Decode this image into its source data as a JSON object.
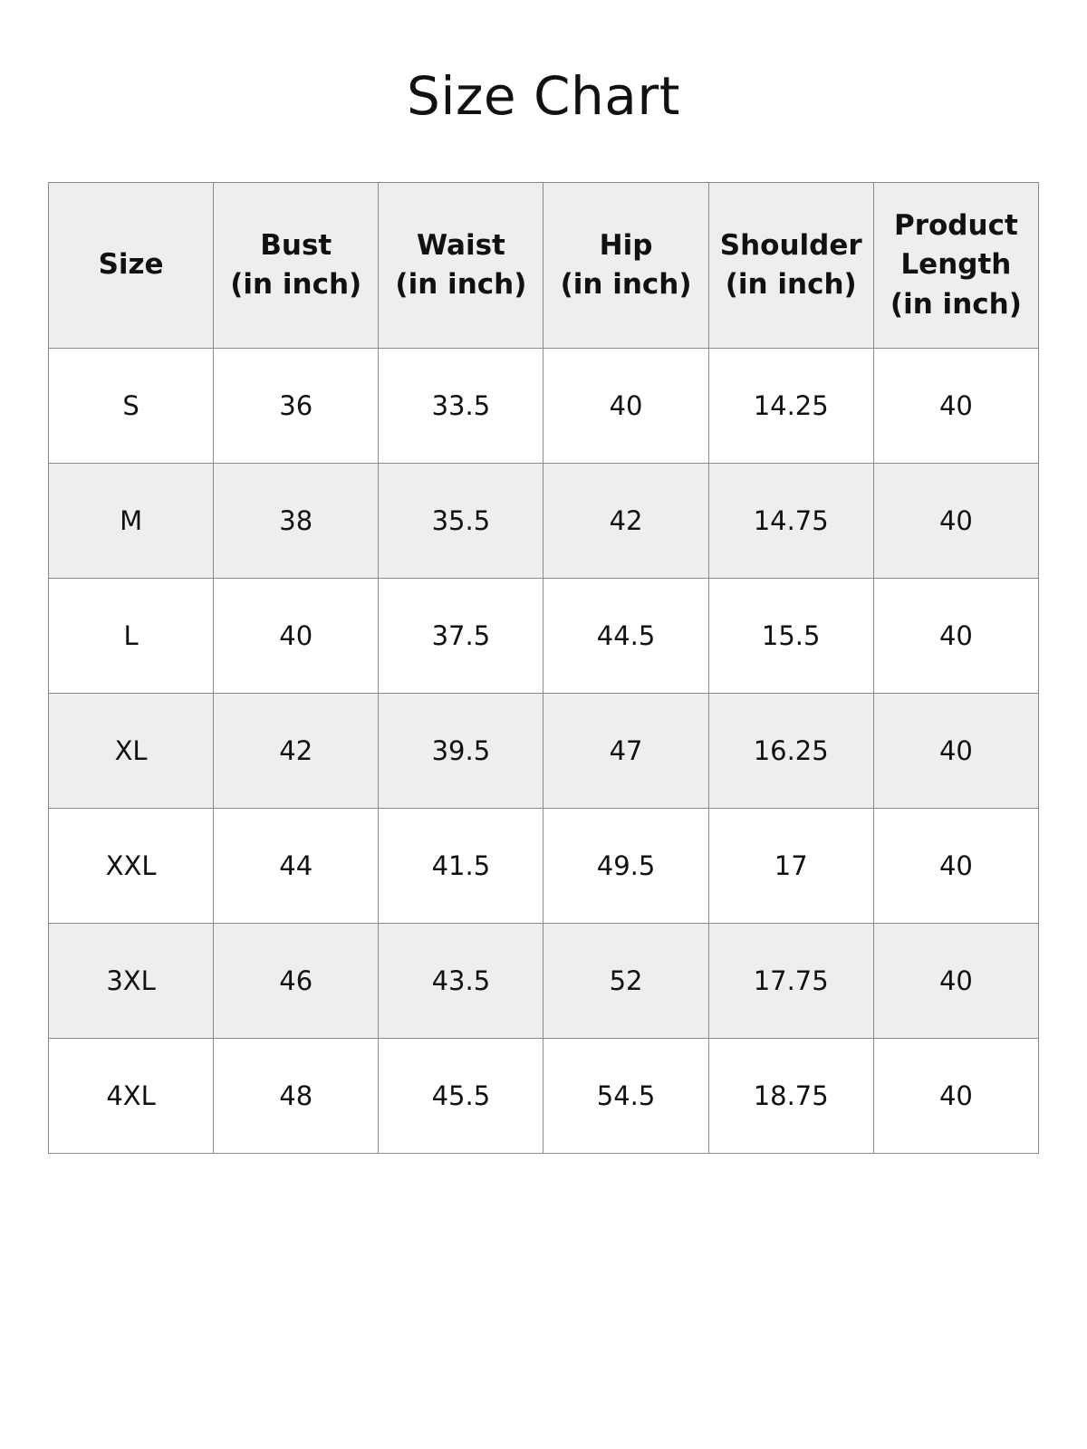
{
  "title": "Size Chart",
  "table": {
    "headers": [
      [
        "Size"
      ],
      [
        "Bust",
        "(in inch)"
      ],
      [
        "Waist",
        "(in inch)"
      ],
      [
        "Hip",
        "(in inch)"
      ],
      [
        "Shoulder",
        "(in inch)"
      ],
      [
        "Product",
        "Length",
        "(in inch)"
      ]
    ],
    "rows": [
      [
        "S",
        "36",
        "33.5",
        "40",
        "14.25",
        "40"
      ],
      [
        "M",
        "38",
        "35.5",
        "42",
        "14.75",
        "40"
      ],
      [
        "L",
        "40",
        "37.5",
        "44.5",
        "15.5",
        "40"
      ],
      [
        "XL",
        "42",
        "39.5",
        "47",
        "16.25",
        "40"
      ],
      [
        "XXL",
        "44",
        "41.5",
        "49.5",
        "17",
        "40"
      ],
      [
        "3XL",
        "46",
        "43.5",
        "52",
        "17.75",
        "40"
      ],
      [
        "4XL",
        "48",
        "45.5",
        "54.5",
        "18.75",
        "40"
      ]
    ]
  },
  "colors": {
    "header_bg": "#eeeeee",
    "alt_row_bg": "#eeeeee",
    "border": "#8a8a8a"
  }
}
